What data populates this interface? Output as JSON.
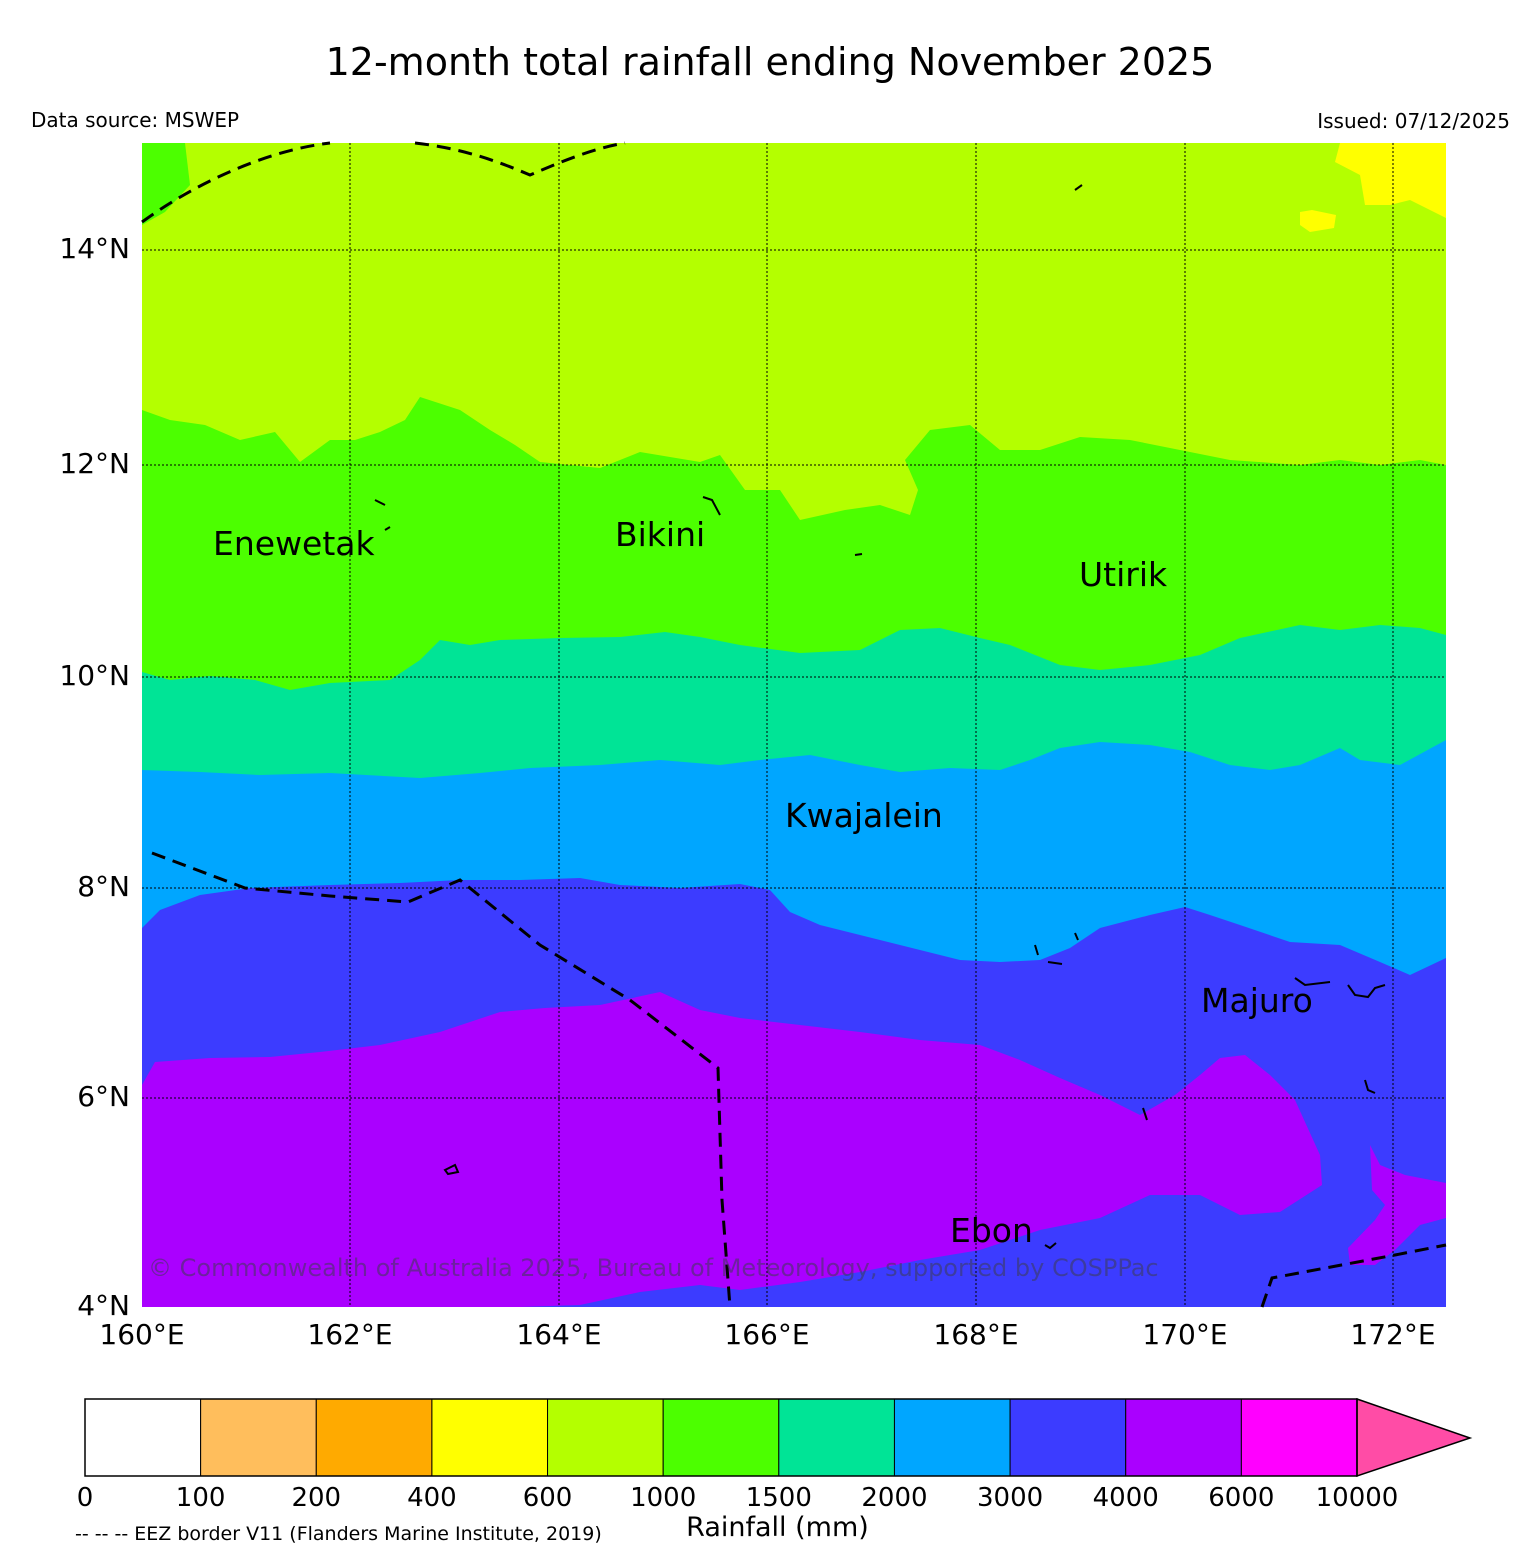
{
  "title": "12-month total rainfall ending November 2025",
  "data_source": "Data source: MSWEP",
  "issued": "Issued: 07/12/2025",
  "copyright": "© Commonwealth of Australia 2025, Bureau of Meteorology, supported by COSPPac",
  "lat_ticks": [
    "14°N",
    "12°N",
    "10°N",
    "8°N",
    "6°N",
    "4°N"
  ],
  "lon_ticks": [
    "160°E",
    "162°E",
    "164°E",
    "166°E",
    "168°E",
    "170°E",
    "172°E"
  ],
  "places": [
    "Enewetak",
    "Bikini",
    "Utirik",
    "Kwajalein",
    "Majuro",
    "Ebon"
  ],
  "colorbar": {
    "label": "Rainfall (mm)",
    "ticks": [
      "0",
      "100",
      "200",
      "400",
      "600",
      "1000",
      "1500",
      "2000",
      "3000",
      "4000",
      "6000",
      "10000"
    ],
    "colors": [
      "#ffffff",
      "#ffbe5c",
      "#ffaa00",
      "#ffff00",
      "#b4ff00",
      "#4cff00",
      "#00e496",
      "#00a6ff",
      "#3c3cff",
      "#aa00ff",
      "#ff00ff",
      "#ff4ca6"
    ]
  },
  "eez_note": "-- -- -- EEZ border V11 (Flanders Marine Institute, 2019)",
  "map_colors": {
    "b600": "#b4ff00",
    "b1000": "#4cff00",
    "b1500": "#00e496",
    "b2000": "#00a6ff",
    "b3000": "#3c3cff",
    "b4000": "#aa00ff",
    "b400": "#ffff00"
  }
}
